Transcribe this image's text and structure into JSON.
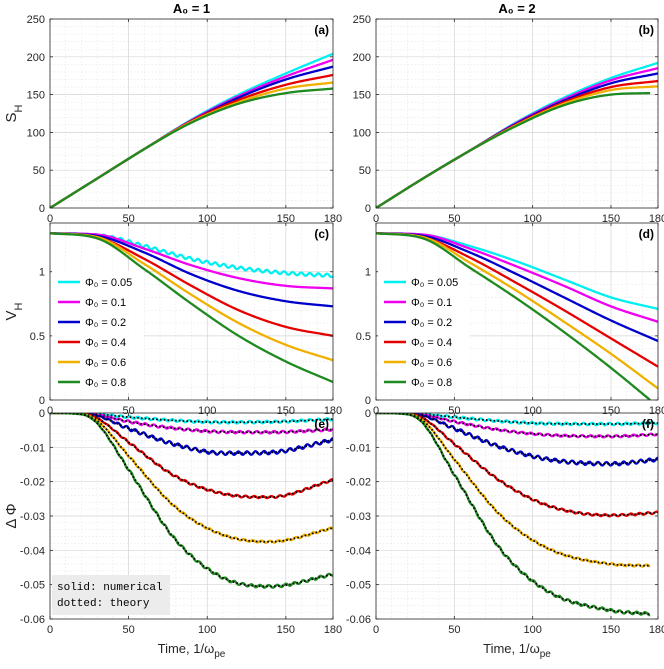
{
  "figure": {
    "col_titles": [
      "A₀ = 1",
      "A₀ = 2"
    ],
    "xlabel": "Time, 1/ω",
    "xlabel_sub": "pe",
    "xticks": [
      0,
      50,
      100,
      150,
      180
    ],
    "colors": {
      "0.05": "#00f0f0",
      "0.1": "#f000f0",
      "0.2": "#0000cc",
      "0.4": "#e60000",
      "0.6": "#f0b000",
      "0.8": "#1f8a1f",
      "theory": "#000000",
      "axis": "#262626",
      "grid": "#d4d4d4"
    }
  },
  "chart_data": [
    {
      "id": "a",
      "panel_label": "(a)",
      "type": "line",
      "column": 0,
      "row": 0,
      "title": "A₀ = 1",
      "ylabel": "S",
      "ylabel_sub": "H",
      "xlabel": "",
      "xlim": [
        0,
        180
      ],
      "ylim": [
        0,
        250
      ],
      "yticks": [
        0,
        50,
        100,
        150,
        200,
        250
      ],
      "ytick_labels": [
        "0",
        "50",
        "100",
        "150",
        "200",
        "250"
      ],
      "grid": true,
      "series": [
        {
          "name": "Φ₀ = 0.05",
          "color": "#00f0f0",
          "x": [
            0,
            30,
            60,
            90,
            120,
            150,
            180
          ],
          "y": [
            0,
            39,
            78,
            117,
            150,
            178,
            204
          ]
        },
        {
          "name": "Φ₀ = 0.1",
          "color": "#f000f0",
          "x": [
            0,
            30,
            60,
            90,
            120,
            150,
            180
          ],
          "y": [
            0,
            39,
            78,
            116,
            148,
            174,
            196
          ]
        },
        {
          "name": "Φ₀ = 0.2",
          "color": "#0000cc",
          "x": [
            0,
            30,
            60,
            90,
            120,
            150,
            180
          ],
          "y": [
            0,
            39,
            78,
            115,
            146,
            170,
            187
          ]
        },
        {
          "name": "Φ₀ = 0.4",
          "color": "#e60000",
          "x": [
            0,
            30,
            60,
            90,
            120,
            150,
            180
          ],
          "y": [
            0,
            39,
            78,
            115,
            143,
            163,
            176
          ]
        },
        {
          "name": "Φ₀ = 0.6",
          "color": "#f0b000",
          "x": [
            0,
            30,
            60,
            90,
            120,
            150,
            180
          ],
          "y": [
            0,
            39,
            78,
            114,
            140,
            158,
            166
          ]
        },
        {
          "name": "Φ₀ = 0.8",
          "color": "#1f8a1f",
          "x": [
            0,
            30,
            60,
            90,
            120,
            150,
            180
          ],
          "y": [
            0,
            39,
            78,
            113,
            138,
            152,
            158
          ]
        }
      ]
    },
    {
      "id": "b",
      "panel_label": "(b)",
      "type": "line",
      "column": 1,
      "row": 0,
      "title": "A₀ = 2",
      "ylabel": "",
      "ylabel_sub": "",
      "xlabel": "",
      "xlim": [
        0,
        180
      ],
      "ylim": [
        0,
        250
      ],
      "yticks": [
        0,
        50,
        100,
        150,
        200,
        250
      ],
      "ytick_labels": [
        "0",
        "50",
        "100",
        "150",
        "200",
        "250"
      ],
      "grid": true,
      "series": [
        {
          "name": "Φ₀ = 0.05",
          "color": "#00f0f0",
          "x": [
            0,
            30,
            60,
            90,
            120,
            150,
            180
          ],
          "y": [
            0,
            39,
            76,
            114,
            146,
            172,
            192
          ]
        },
        {
          "name": "Φ₀ = 0.1",
          "color": "#f000f0",
          "x": [
            0,
            30,
            60,
            90,
            120,
            150,
            180
          ],
          "y": [
            0,
            39,
            76,
            113,
            144,
            169,
            185
          ]
        },
        {
          "name": "Φ₀ = 0.2",
          "color": "#0000cc",
          "x": [
            0,
            30,
            60,
            90,
            120,
            150,
            180
          ],
          "y": [
            0,
            39,
            76,
            112,
            142,
            165,
            178
          ]
        },
        {
          "name": "Φ₀ = 0.4",
          "color": "#e60000",
          "x": [
            0,
            30,
            60,
            90,
            120,
            150,
            180
          ],
          "y": [
            0,
            39,
            76,
            111,
            140,
            160,
            168
          ]
        },
        {
          "name": "Φ₀ = 0.6",
          "color": "#f0b000",
          "x": [
            0,
            30,
            60,
            90,
            120,
            150,
            180
          ],
          "y": [
            0,
            39,
            76,
            110,
            138,
            156,
            161
          ]
        },
        {
          "name": "Φ₀ = 0.8",
          "color": "#1f8a1f",
          "x": [
            0,
            30,
            60,
            90,
            120,
            150,
            175
          ],
          "y": [
            0,
            39,
            76,
            109,
            136,
            150,
            152
          ]
        }
      ]
    },
    {
      "id": "c",
      "panel_label": "(c)",
      "type": "line",
      "column": 0,
      "row": 1,
      "title": "",
      "ylabel": "V",
      "ylabel_sub": "H",
      "xlabel": "",
      "xlim": [
        0,
        180
      ],
      "ylim": [
        0,
        1.38
      ],
      "yticks": [
        0,
        0.5,
        1
      ],
      "ytick_labels": [
        "0",
        "0.5",
        "1"
      ],
      "grid": true,
      "legend": {
        "position": "left",
        "entries": [
          "Φ₀ = 0.05",
          "Φ₀ = 0.1",
          "Φ₀ = 0.2",
          "Φ₀ = 0.4",
          "Φ₀ = 0.6",
          "Φ₀ = 0.8"
        ]
      },
      "series": [
        {
          "name": "Φ₀ = 0.05",
          "color": "#00f0f0",
          "x": [
            0,
            30,
            60,
            90,
            120,
            150,
            180
          ],
          "y": [
            1.3,
            1.29,
            1.2,
            1.1,
            1.03,
            0.99,
            0.97
          ],
          "wobble": 0.012
        },
        {
          "name": "Φ₀ = 0.1",
          "color": "#f000f0",
          "x": [
            0,
            30,
            60,
            90,
            120,
            150,
            180
          ],
          "y": [
            1.3,
            1.29,
            1.18,
            1.05,
            0.95,
            0.89,
            0.87
          ]
        },
        {
          "name": "Φ₀ = 0.2",
          "color": "#0000cc",
          "x": [
            0,
            30,
            60,
            90,
            120,
            150,
            180
          ],
          "y": [
            1.3,
            1.28,
            1.15,
            0.98,
            0.85,
            0.77,
            0.73
          ]
        },
        {
          "name": "Φ₀ = 0.4",
          "color": "#e60000",
          "x": [
            0,
            30,
            60,
            90,
            120,
            150,
            180
          ],
          "y": [
            1.3,
            1.27,
            1.1,
            0.89,
            0.7,
            0.57,
            0.5
          ]
        },
        {
          "name": "Φ₀ = 0.6",
          "color": "#f0b000",
          "x": [
            0,
            30,
            60,
            90,
            120,
            150,
            180
          ],
          "y": [
            1.3,
            1.27,
            1.06,
            0.82,
            0.6,
            0.43,
            0.31
          ]
        },
        {
          "name": "Φ₀ = 0.8",
          "color": "#1f8a1f",
          "x": [
            0,
            30,
            60,
            90,
            120,
            150,
            180
          ],
          "y": [
            1.3,
            1.26,
            1.02,
            0.75,
            0.5,
            0.3,
            0.14
          ]
        }
      ]
    },
    {
      "id": "d",
      "panel_label": "(d)",
      "type": "line",
      "column": 1,
      "row": 1,
      "title": "",
      "ylabel": "",
      "ylabel_sub": "",
      "xlabel": "",
      "xlim": [
        0,
        180
      ],
      "ylim": [
        0,
        1.38
      ],
      "yticks": [
        0,
        0.5,
        1
      ],
      "ytick_labels": [
        "0",
        "0.5",
        "1"
      ],
      "grid": true,
      "legend": {
        "position": "left",
        "entries": [
          "Φ₀ = 0.05",
          "Φ₀ = 0.1",
          "Φ₀ = 0.2",
          "Φ₀ = 0.4",
          "Φ₀ = 0.6",
          "Φ₀ = 0.8"
        ]
      },
      "series": [
        {
          "name": "Φ₀ = 0.05",
          "color": "#00f0f0",
          "x": [
            0,
            30,
            60,
            90,
            120,
            150,
            180
          ],
          "y": [
            1.3,
            1.29,
            1.2,
            1.08,
            0.94,
            0.8,
            0.71
          ]
        },
        {
          "name": "Φ₀ = 0.1",
          "color": "#f000f0",
          "x": [
            0,
            30,
            60,
            90,
            120,
            150,
            180
          ],
          "y": [
            1.3,
            1.29,
            1.18,
            1.04,
            0.89,
            0.73,
            0.61
          ]
        },
        {
          "name": "Φ₀ = 0.2",
          "color": "#0000cc",
          "x": [
            0,
            30,
            60,
            90,
            120,
            150,
            180
          ],
          "y": [
            1.3,
            1.28,
            1.15,
            0.98,
            0.8,
            0.62,
            0.46
          ]
        },
        {
          "name": "Φ₀ = 0.4",
          "color": "#e60000",
          "x": [
            0,
            30,
            60,
            90,
            120,
            150,
            180
          ],
          "y": [
            1.3,
            1.27,
            1.11,
            0.91,
            0.7,
            0.48,
            0.26
          ]
        },
        {
          "name": "Φ₀ = 0.6",
          "color": "#f0b000",
          "x": [
            0,
            30,
            60,
            90,
            120,
            150,
            180
          ],
          "y": [
            1.3,
            1.27,
            1.07,
            0.85,
            0.61,
            0.36,
            0.09
          ]
        },
        {
          "name": "Φ₀ = 0.8",
          "color": "#1f8a1f",
          "x": [
            0,
            30,
            60,
            90,
            120,
            150,
            175
          ],
          "y": [
            1.3,
            1.26,
            1.03,
            0.79,
            0.53,
            0.25,
            0.0
          ]
        }
      ]
    },
    {
      "id": "e",
      "panel_label": "(e)",
      "type": "line",
      "column": 0,
      "row": 2,
      "title": "",
      "ylabel": "Δ Φ",
      "ylabel_sub": "",
      "xlabel": "Time, 1/ωpe",
      "xlim": [
        0,
        180
      ],
      "ylim": [
        -0.06,
        0.0
      ],
      "yticks": [
        0,
        -0.01,
        -0.02,
        -0.03,
        -0.04,
        -0.05,
        -0.06
      ],
      "ytick_labels": [
        "0",
        "-0.01",
        "-0.02",
        "-0.03",
        "-0.04",
        "-0.05",
        "-0.06"
      ],
      "grid": true,
      "annotation": [
        "solid: numerical",
        "dotted: theory"
      ],
      "series": [
        {
          "name": "Φ₀ = 0.05",
          "color": "#00f0f0",
          "x": [
            0,
            20,
            30,
            50,
            80,
            110,
            140,
            180
          ],
          "y": [
            0,
            -0.0001,
            -0.0003,
            -0.0012,
            -0.0022,
            -0.0027,
            -0.0026,
            -0.0018
          ],
          "wobble": 0.00035,
          "theory": true
        },
        {
          "name": "Φ₀ = 0.1",
          "color": "#f000f0",
          "x": [
            0,
            20,
            30,
            50,
            80,
            110,
            140,
            180
          ],
          "y": [
            0,
            -0.0001,
            -0.0005,
            -0.0025,
            -0.0045,
            -0.0055,
            -0.0056,
            -0.0048
          ],
          "wobble": 0.00035,
          "theory": true
        },
        {
          "name": "Φ₀ = 0.2",
          "color": "#0000cc",
          "x": [
            0,
            20,
            30,
            50,
            80,
            110,
            140,
            180
          ],
          "y": [
            0,
            -0.0002,
            -0.0008,
            -0.0045,
            -0.0092,
            -0.0117,
            -0.0115,
            -0.0078
          ],
          "wobble": 0.0005,
          "theory": true
        },
        {
          "name": "Φ₀ = 0.4",
          "color": "#e60000",
          "x": [
            0,
            20,
            30,
            50,
            80,
            110,
            140,
            180
          ],
          "y": [
            0,
            -0.0002,
            -0.0015,
            -0.0085,
            -0.0185,
            -0.0235,
            -0.0245,
            -0.0195
          ],
          "wobble": 0.0003,
          "theory": true
        },
        {
          "name": "Φ₀ = 0.6",
          "color": "#f0b000",
          "x": [
            0,
            20,
            30,
            50,
            80,
            110,
            140,
            180
          ],
          "y": [
            0,
            -0.0003,
            -0.0022,
            -0.0125,
            -0.0275,
            -0.0355,
            -0.0375,
            -0.0335
          ],
          "wobble": 0.0003,
          "theory": true
        },
        {
          "name": "Φ₀ = 0.8",
          "color": "#1f8a1f",
          "x": [
            0,
            20,
            30,
            50,
            80,
            110,
            140,
            180
          ],
          "y": [
            0,
            -0.0004,
            -0.003,
            -0.0165,
            -0.037,
            -0.048,
            -0.0505,
            -0.047
          ],
          "wobble": 0.0004,
          "theory": true
        }
      ]
    },
    {
      "id": "f",
      "panel_label": "(f)",
      "type": "line",
      "column": 1,
      "row": 2,
      "title": "",
      "ylabel": "",
      "ylabel_sub": "",
      "xlabel": "Time, 1/ωpe",
      "xlim": [
        0,
        180
      ],
      "ylim": [
        -0.06,
        0.0
      ],
      "yticks": [
        0,
        -0.01,
        -0.02,
        -0.03,
        -0.04,
        -0.05,
        -0.06
      ],
      "ytick_labels": [
        "0",
        "-0.01",
        "-0.02",
        "-0.03",
        "-0.04",
        "-0.05",
        "-0.06"
      ],
      "grid": true,
      "series": [
        {
          "name": "Φ₀ = 0.05",
          "color": "#00f0f0",
          "x": [
            0,
            20,
            30,
            50,
            80,
            110,
            150,
            180
          ],
          "y": [
            0,
            -0.0001,
            -0.0003,
            -0.0012,
            -0.0024,
            -0.0031,
            -0.0032,
            -0.0029
          ],
          "wobble": 0.00035,
          "theory": true
        },
        {
          "name": "Φ₀ = 0.1",
          "color": "#f000f0",
          "x": [
            0,
            20,
            30,
            50,
            80,
            110,
            150,
            180
          ],
          "y": [
            0,
            -0.0001,
            -0.0005,
            -0.0025,
            -0.005,
            -0.0064,
            -0.0068,
            -0.0062
          ],
          "wobble": 0.0003,
          "theory": true
        },
        {
          "name": "Φ₀ = 0.2",
          "color": "#0000cc",
          "x": [
            0,
            20,
            30,
            50,
            80,
            110,
            150,
            180
          ],
          "y": [
            0,
            -0.0002,
            -0.0008,
            -0.0045,
            -0.01,
            -0.0135,
            -0.0148,
            -0.0135
          ],
          "wobble": 0.0005,
          "theory": true
        },
        {
          "name": "Φ₀ = 0.4",
          "color": "#e60000",
          "x": [
            0,
            20,
            30,
            50,
            80,
            110,
            150,
            180
          ],
          "y": [
            0,
            -0.0002,
            -0.0015,
            -0.009,
            -0.02,
            -0.027,
            -0.0298,
            -0.029
          ],
          "wobble": 0.0003,
          "theory": true
        },
        {
          "name": "Φ₀ = 0.6",
          "color": "#f0b000",
          "x": [
            0,
            20,
            30,
            50,
            80,
            110,
            150,
            175
          ],
          "y": [
            0,
            -0.0003,
            -0.0022,
            -0.0135,
            -0.03,
            -0.0395,
            -0.044,
            -0.0445
          ],
          "wobble": 0.0003,
          "theory": true
        },
        {
          "name": "Φ₀ = 0.8",
          "color": "#1f8a1f",
          "x": [
            0,
            20,
            30,
            50,
            80,
            110,
            150,
            175
          ],
          "y": [
            0,
            -0.0004,
            -0.003,
            -0.018,
            -0.04,
            -0.052,
            -0.0575,
            -0.0585
          ],
          "wobble": 0.0004,
          "theory": true
        }
      ]
    }
  ]
}
